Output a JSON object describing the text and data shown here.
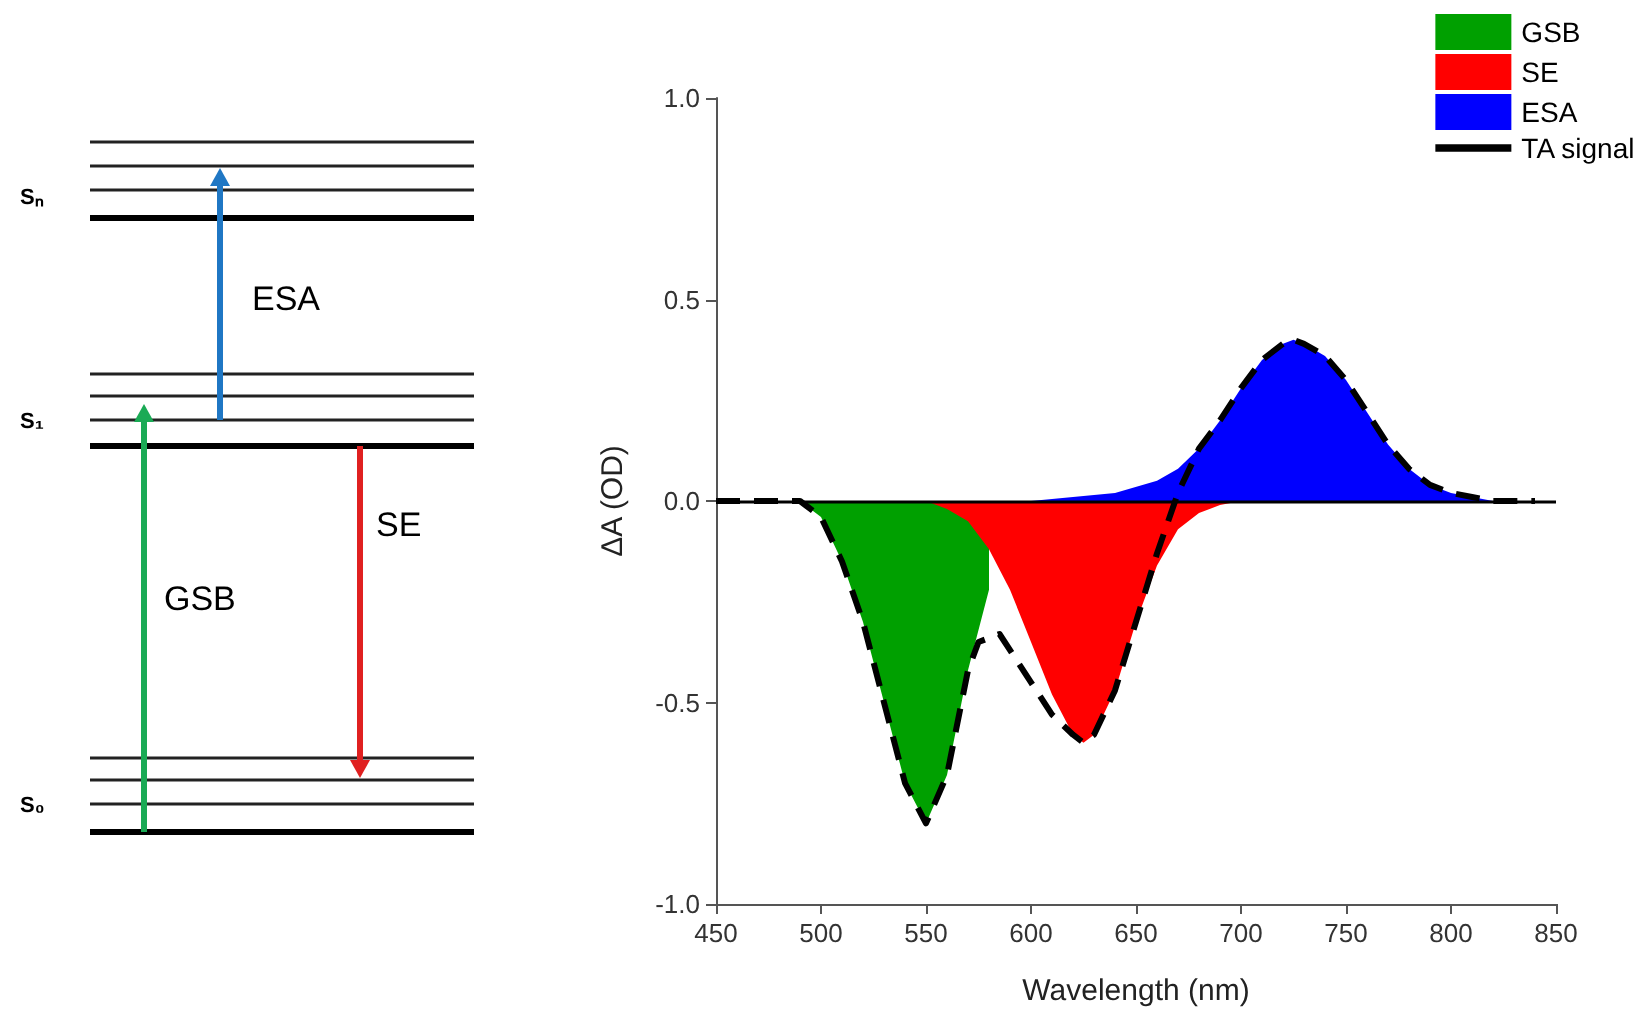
{
  "chart_data": {
    "type": "area",
    "xlabel": "Wavelength (nm)",
    "ylabel": "ΔA (OD)",
    "xlim": [
      450,
      850
    ],
    "xticks": [
      450,
      500,
      550,
      600,
      650,
      700,
      750,
      800,
      850
    ],
    "ylim": [
      -1,
      1
    ],
    "yticks": [
      {
        "value": -1,
        "label": "-1.0"
      },
      {
        "value": -0.5,
        "label": "-0.5"
      },
      {
        "value": 0,
        "label": "0.0"
      },
      {
        "value": 0.5,
        "label": "0.5"
      },
      {
        "value": 1,
        "label": "1.0"
      }
    ],
    "grid": false,
    "legend": "top right",
    "ref_lines": [
      {
        "axis": "y",
        "value": 0,
        "color": "#000000"
      }
    ],
    "annotations": [
      "Sₙ",
      "S₁",
      "S₀",
      "ESA",
      "SE",
      "GSB"
    ],
    "series": [
      {
        "name": "GSB",
        "color": "#00a000",
        "x": [
          490,
          500,
          510,
          520,
          530,
          540,
          550,
          560,
          570,
          580
        ],
        "values": [
          0,
          -0.04,
          -0.15,
          -0.3,
          -0.5,
          -0.7,
          -0.8,
          -0.68,
          -0.42,
          -0.22
        ]
      },
      {
        "name": "SE",
        "color": "#ff0000",
        "x": [
          550,
          560,
          570,
          580,
          590,
          600,
          610,
          620,
          625,
          630,
          640,
          650,
          660,
          670,
          680,
          690,
          700
        ],
        "values": [
          0,
          -0.02,
          -0.05,
          -0.12,
          -0.22,
          -0.35,
          -0.48,
          -0.58,
          -0.6,
          -0.58,
          -0.47,
          -0.3,
          -0.16,
          -0.07,
          -0.03,
          -0.01,
          0
        ]
      },
      {
        "name": "ESA",
        "color": "#0000ff",
        "x": [
          600,
          620,
          640,
          660,
          670,
          680,
          690,
          700,
          710,
          720,
          725,
          730,
          740,
          750,
          760,
          770,
          780,
          790,
          800,
          810,
          820
        ],
        "values": [
          0,
          0.01,
          0.02,
          0.05,
          0.08,
          0.13,
          0.2,
          0.28,
          0.35,
          0.39,
          0.4,
          0.39,
          0.36,
          0.3,
          0.22,
          0.14,
          0.08,
          0.04,
          0.02,
          0.01,
          0
        ]
      },
      {
        "name": "TA signal",
        "type": "line",
        "color": "#000000",
        "line_style": "dashed",
        "x": [
          450,
          470,
          490,
          500,
          510,
          520,
          530,
          540,
          550,
          560,
          570,
          575,
          585,
          600,
          610,
          620,
          625,
          630,
          640,
          650,
          660,
          670,
          680,
          690,
          700,
          710,
          720,
          725,
          730,
          740,
          750,
          760,
          770,
          780,
          790,
          800,
          810,
          820,
          840
        ],
        "values": [
          0,
          0,
          0,
          -0.04,
          -0.15,
          -0.3,
          -0.5,
          -0.7,
          -0.8,
          -0.68,
          -0.42,
          -0.35,
          -0.33,
          -0.45,
          -0.53,
          -0.58,
          -0.6,
          -0.58,
          -0.47,
          -0.3,
          -0.13,
          0.02,
          0.13,
          0.2,
          0.28,
          0.35,
          0.39,
          0.4,
          0.39,
          0.36,
          0.3,
          0.22,
          0.14,
          0.08,
          0.04,
          0.02,
          0.01,
          0,
          0
        ]
      }
    ]
  }
}
